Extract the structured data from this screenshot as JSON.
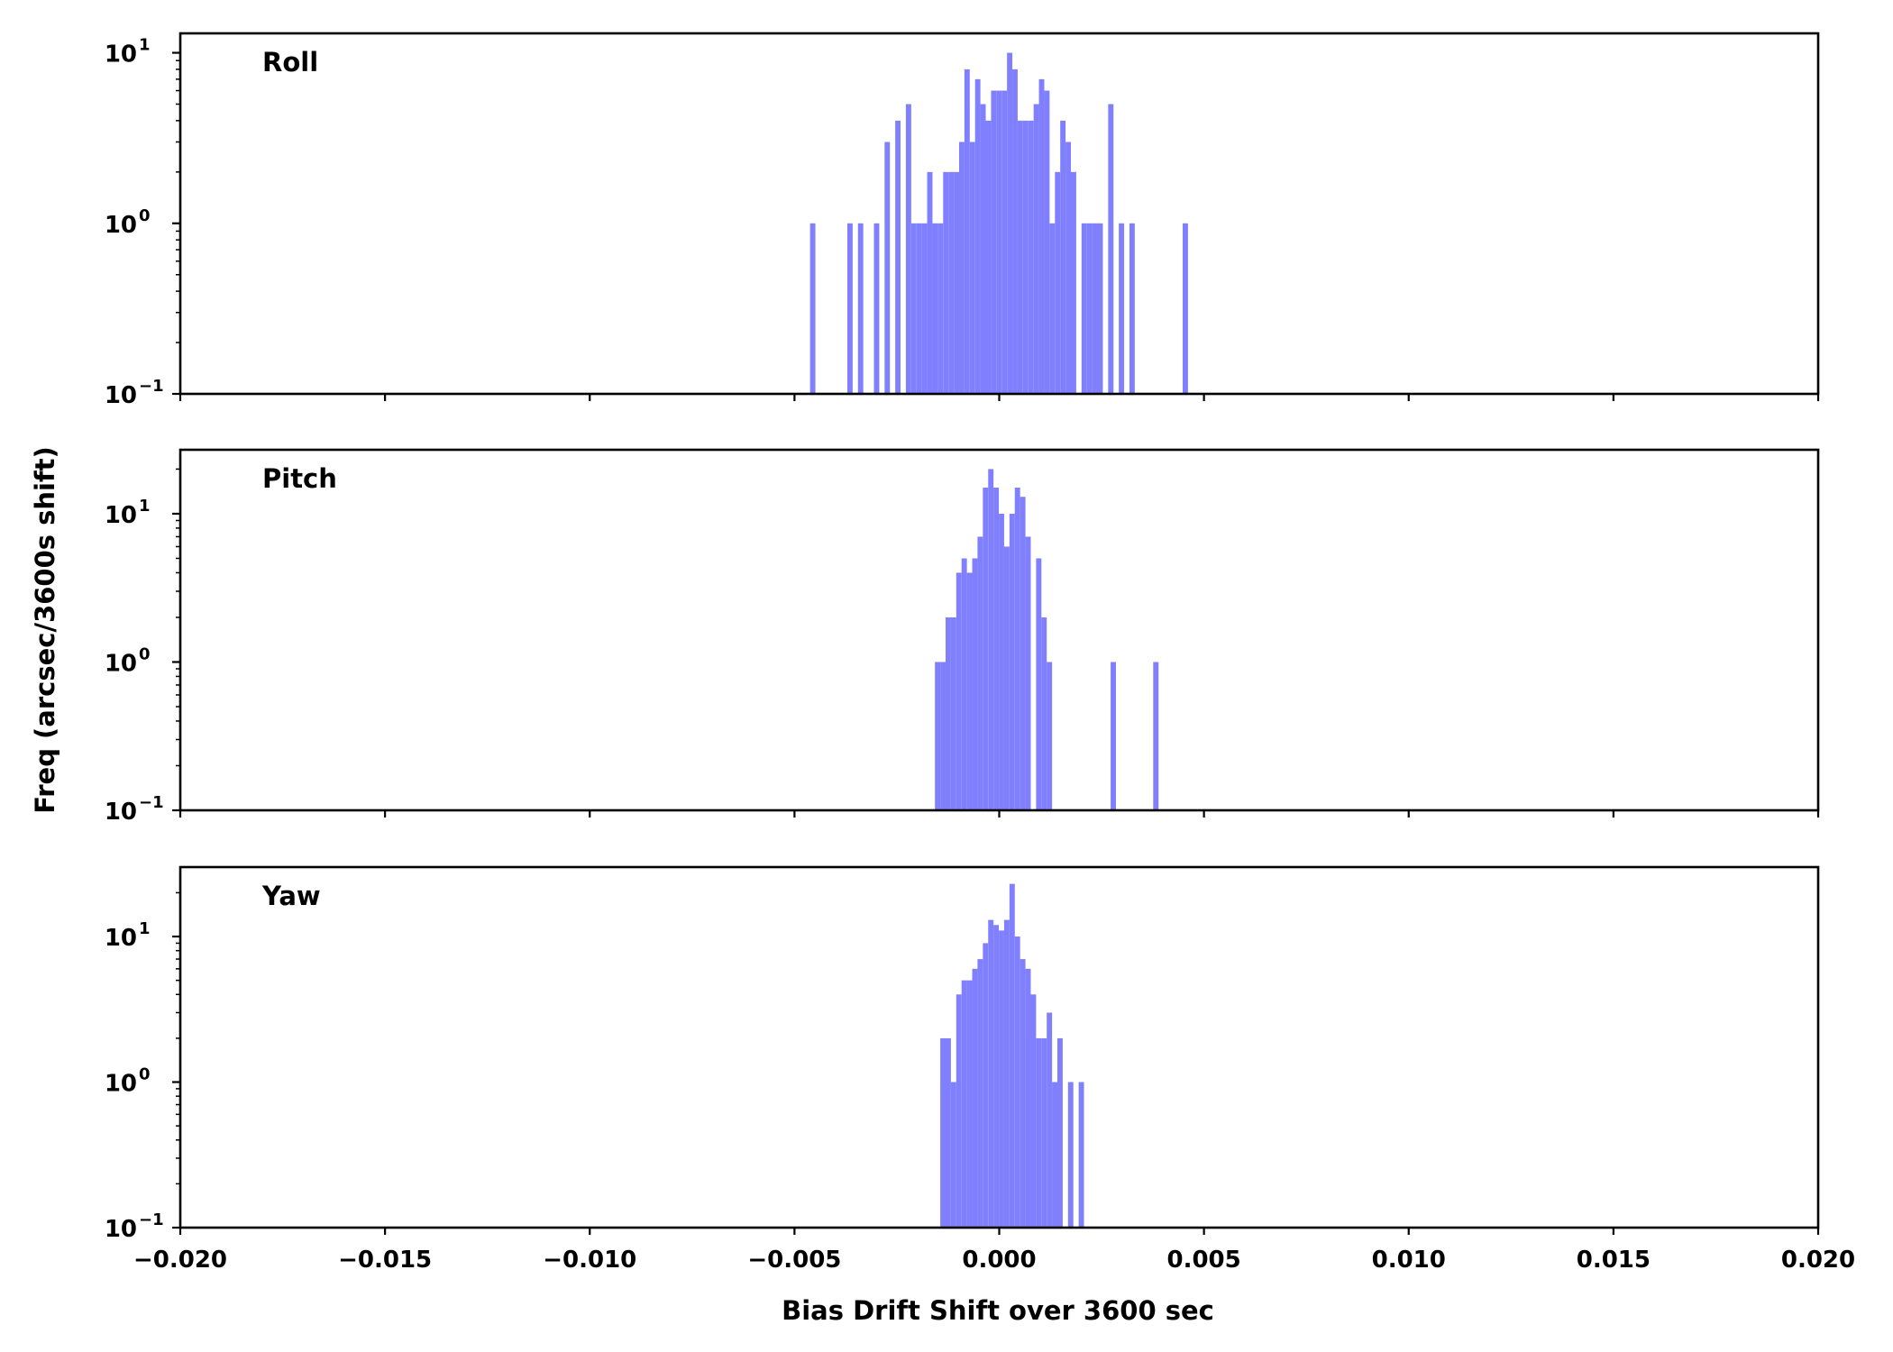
{
  "chart_data": {
    "type": "bar",
    "bar_color": "#8080ff",
    "xlabel": "Bias Drift Shift over 3600 sec",
    "ylabel": "Freq (arcsec/3600s shift)",
    "xlim": [
      -0.02,
      0.02
    ],
    "xticks": [
      -0.02,
      -0.015,
      -0.01,
      -0.005,
      0.0,
      0.005,
      0.01,
      0.015,
      0.02
    ],
    "xtick_labels": [
      "−0.020",
      "−0.015",
      "−0.010",
      "−0.005",
      "0.000",
      "0.005",
      "0.010",
      "0.015",
      "0.020"
    ],
    "yscale": "log",
    "ytick_labels": [
      {
        "base": "10",
        "exp": "−1",
        "value": 0.1
      },
      {
        "base": "10",
        "exp": "0",
        "value": 1
      },
      {
        "base": "10",
        "exp": "1",
        "value": 10
      }
    ],
    "bin_width": 0.00013,
    "panels": [
      {
        "name": "Roll",
        "ylim": [
          0.1,
          13
        ],
        "bins": [
          [
            -0.00462,
            1
          ],
          [
            -0.00371,
            1
          ],
          [
            -0.00345,
            1
          ],
          [
            -0.00306,
            1
          ],
          [
            -0.0028,
            3
          ],
          [
            -0.00254,
            4
          ],
          [
            -0.00228,
            5
          ],
          [
            -0.00215,
            1
          ],
          [
            -0.00202,
            1
          ],
          [
            -0.00189,
            1
          ],
          [
            -0.00176,
            2
          ],
          [
            -0.00163,
            1
          ],
          [
            -0.0015,
            1
          ],
          [
            -0.00137,
            2
          ],
          [
            -0.00124,
            2
          ],
          [
            -0.00111,
            2
          ],
          [
            -0.00098,
            3
          ],
          [
            -0.00085,
            8
          ],
          [
            -0.00072,
            3
          ],
          [
            -0.00059,
            7
          ],
          [
            -0.00046,
            5
          ],
          [
            -0.00033,
            4
          ],
          [
            -0.0002,
            6
          ],
          [
            -7e-05,
            6
          ],
          [
            6e-05,
            6
          ],
          [
            0.00019,
            10
          ],
          [
            0.00032,
            8
          ],
          [
            0.00045,
            4
          ],
          [
            0.00058,
            4
          ],
          [
            0.00071,
            4
          ],
          [
            0.00084,
            5
          ],
          [
            0.00097,
            7
          ],
          [
            0.0011,
            6
          ],
          [
            0.00123,
            1
          ],
          [
            0.00136,
            2
          ],
          [
            0.00149,
            4
          ],
          [
            0.00162,
            3
          ],
          [
            0.00175,
            2
          ],
          [
            0.00201,
            1
          ],
          [
            0.00214,
            1
          ],
          [
            0.00227,
            1
          ],
          [
            0.0024,
            1
          ],
          [
            0.00266,
            5
          ],
          [
            0.00292,
            1
          ],
          [
            0.00318,
            1
          ],
          [
            0.00448,
            1
          ]
        ]
      },
      {
        "name": "Pitch",
        "ylim": [
          0.1,
          27
        ],
        "bins": [
          [
            -0.00157,
            1
          ],
          [
            -0.00144,
            1
          ],
          [
            -0.00131,
            2
          ],
          [
            -0.00118,
            2
          ],
          [
            -0.00105,
            4
          ],
          [
            -0.00092,
            5
          ],
          [
            -0.00079,
            4
          ],
          [
            -0.00066,
            5
          ],
          [
            -0.00053,
            7
          ],
          [
            -0.0004,
            15
          ],
          [
            -0.00027,
            20
          ],
          [
            -0.00014,
            15
          ],
          [
            -1e-05,
            10
          ],
          [
            0.00012,
            6
          ],
          [
            0.00025,
            10
          ],
          [
            0.00038,
            15
          ],
          [
            0.00051,
            13
          ],
          [
            0.00064,
            7
          ],
          [
            0.0009,
            5
          ],
          [
            0.00103,
            2
          ],
          [
            0.00116,
            1
          ],
          [
            0.00272,
            1
          ],
          [
            0.00376,
            1
          ]
        ]
      },
      {
        "name": "Yaw",
        "ylim": [
          0.1,
          30
        ],
        "bins": [
          [
            -0.00144,
            2
          ],
          [
            -0.00131,
            2
          ],
          [
            -0.00118,
            1
          ],
          [
            -0.00105,
            4
          ],
          [
            -0.00092,
            5
          ],
          [
            -0.00079,
            5
          ],
          [
            -0.00066,
            6
          ],
          [
            -0.00053,
            7
          ],
          [
            -0.0004,
            9
          ],
          [
            -0.00027,
            13
          ],
          [
            -0.00014,
            12
          ],
          [
            -1e-05,
            11
          ],
          [
            0.00012,
            13
          ],
          [
            0.00025,
            23
          ],
          [
            0.00038,
            10
          ],
          [
            0.00051,
            7
          ],
          [
            0.00064,
            6
          ],
          [
            0.00077,
            4
          ],
          [
            0.0009,
            2
          ],
          [
            0.00103,
            2
          ],
          [
            0.00116,
            3
          ],
          [
            0.00129,
            1
          ],
          [
            0.00142,
            2
          ],
          [
            0.00168,
            1
          ],
          [
            0.00194,
            1
          ]
        ]
      }
    ]
  }
}
